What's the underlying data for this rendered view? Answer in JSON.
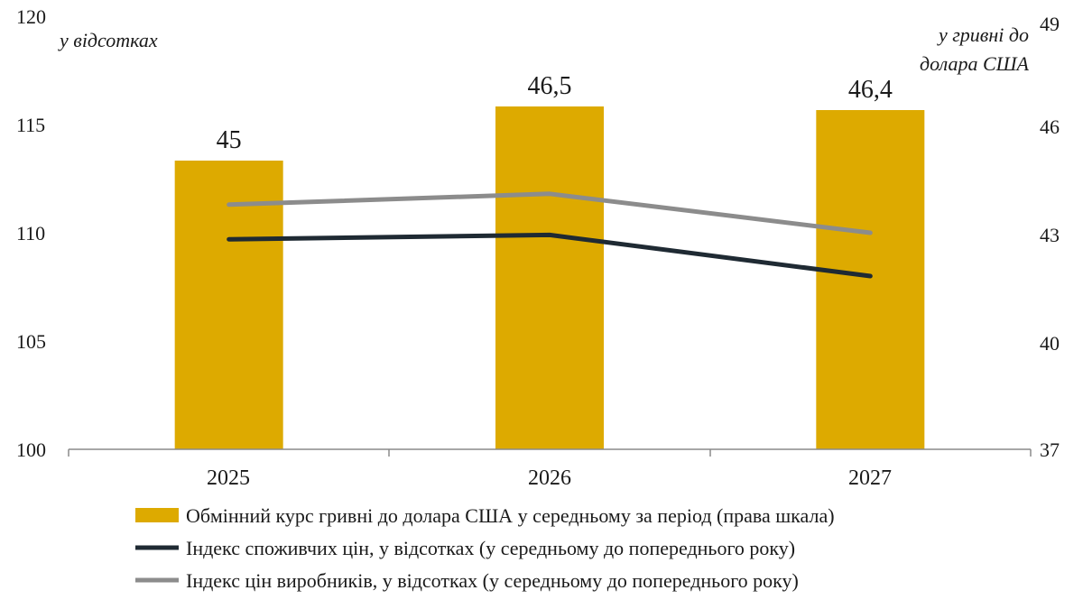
{
  "chart_data": {
    "type": "bar",
    "categories": [
      "2025",
      "2026",
      "2027"
    ],
    "y_left": {
      "label": "у відсотках",
      "range": [
        100,
        120
      ],
      "ticks": [
        "100",
        "105",
        "110",
        "115",
        "120"
      ]
    },
    "y_right": {
      "label_lines": [
        "у гривні до",
        "долара США"
      ],
      "range": [
        37,
        49
      ],
      "ticks": [
        "37",
        "40",
        "43",
        "46",
        "49"
      ]
    },
    "series": [
      {
        "name": "Обмінний курс гривні до долара США у середньому за період (права шкала)",
        "type": "bar",
        "axis": "right",
        "values": [
          45,
          46.5,
          46.4
        ],
        "labels": [
          "45",
          "46,5",
          "46,4"
        ],
        "color": "#DDAA00"
      },
      {
        "name": "Індекс споживчих цін, у відсотках (у середньому до попереднього року)",
        "type": "line",
        "axis": "left",
        "values": [
          109.7,
          109.9,
          108.0
        ],
        "color": "#1F2A33"
      },
      {
        "name": "Індекс цін виробників, у відсотках (у середньому до попереднього року)",
        "type": "line",
        "axis": "left",
        "values": [
          111.3,
          111.8,
          110.0
        ],
        "color": "#8C8C8C"
      }
    ],
    "grid": false,
    "legend_position": "bottom"
  }
}
